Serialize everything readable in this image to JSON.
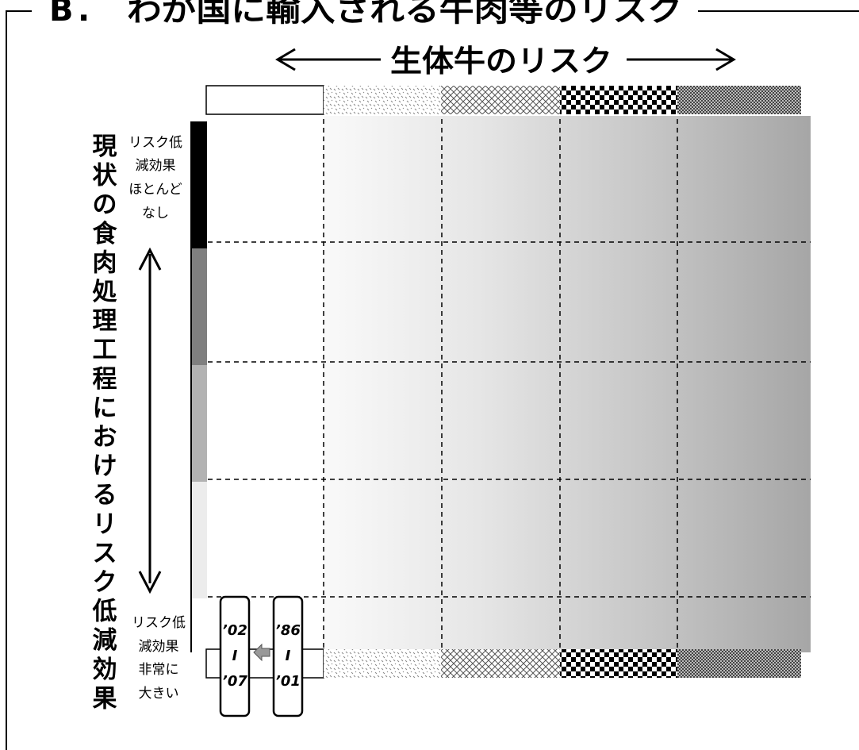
{
  "frame": {
    "title_letter": "B",
    "title_dot": ".",
    "title_text": "わが国に輸入される牛肉等のリスク"
  },
  "top_axis": {
    "label": "生体牛のリスク"
  },
  "left_axis": {
    "label_chars": [
      "現",
      "状",
      "の",
      "食",
      "肉",
      "処",
      "理",
      "工",
      "程",
      "に",
      "お",
      "け",
      "る",
      "リ",
      "ス",
      "ク",
      "低",
      "減",
      "効",
      "果"
    ],
    "top_note_lines": [
      "リスク低",
      "減効果",
      "ほとんど",
      "なし"
    ],
    "bottom_note_lines": [
      "リスク低",
      "減効果",
      "非常に",
      "大きい"
    ]
  },
  "periods": {
    "recent_lines": [
      "’02",
      "I",
      "’07"
    ],
    "earlier_lines": [
      "’86",
      "I",
      "’01"
    ]
  },
  "colors": {
    "left_bar": [
      "#000000",
      "#7f7f7f",
      "#b2b2b2",
      "#ececec",
      "#ffffff"
    ],
    "gradient_end": "#a6a6a6",
    "arrow_fill": "#999999"
  }
}
